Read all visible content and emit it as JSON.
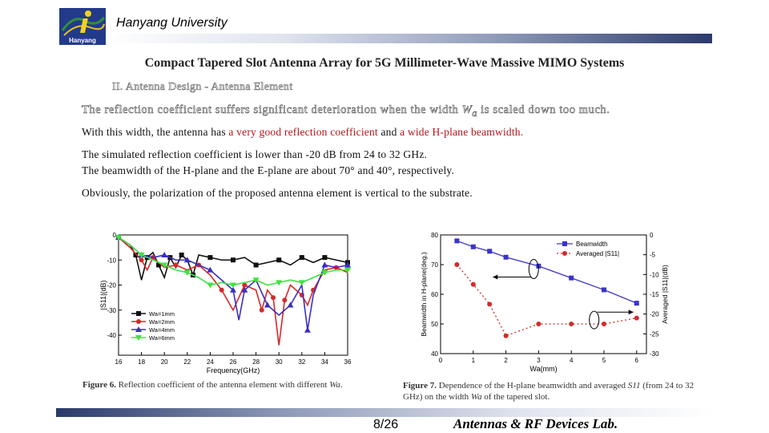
{
  "header": {
    "university": "Hanyang University",
    "logo_text": "Hanyang",
    "accent": "#2b3a6b"
  },
  "title": "Compact Tapered Slot Antenna Array for 5G Millimeter-Wave Massive MIMO Systems",
  "section": "II. Antenna Design - Antenna Element",
  "reflection_note": {
    "pre": "The reflection coefficient suffers significant deterioration when the width ",
    "var": "W",
    "sub": "a",
    "post": " is scaled down too much."
  },
  "body": {
    "line1_pre": "With this width, the antenna has ",
    "line1_red1": "a very good reflection coefficient",
    "line1_mid": " and ",
    "line1_red2": "a wide H-plane beamwidth.",
    "line2": "The simulated reflection coefficient is lower than -20 dB from 24 to 32 GHz.",
    "line3": "The beamwidth of the H-plane and the E-plane are about 70° and 40°, respectively.",
    "line4": "Obviously, the polarization of the proposed antenna element is vertical to the substrate."
  },
  "captions": {
    "fig6_bold": "Figure 6.",
    "fig6_text": " Reflection coefficient of the antenna element with different ",
    "fig6_var": "Wa",
    "fig6_end": ".",
    "fig7_bold": "Figure 7.",
    "fig7_text": " Dependence of the H-plane beamwidth and averaged ",
    "fig7_var": "S11",
    "fig7_text2": " (from 24 to 32 GHz) on the width ",
    "fig7_var2": "Wa",
    "fig7_end": " of the tapered slot."
  },
  "footer": {
    "page": "8/26",
    "lab": "Antennas & RF Devices Lab."
  },
  "chart_data": [
    {
      "type": "line",
      "xlabel": "Frequency(GHz)",
      "ylabel": "|S11|(dB)",
      "xlim": [
        16,
        36
      ],
      "ylim": [
        -48,
        0
      ],
      "xticks": [
        16,
        18,
        20,
        22,
        24,
        26,
        28,
        30,
        32,
        34,
        36
      ],
      "yticks": [
        0,
        -10,
        -20,
        -30,
        -40
      ],
      "legend": "bottom-left",
      "series": [
        {
          "name": "Wa=1mm",
          "color": "#111111",
          "marker": "square",
          "x": [
            16,
            17,
            17.5,
            18,
            18.5,
            19,
            19.5,
            20,
            20.5,
            21,
            21.5,
            22,
            22.5,
            23,
            24,
            25,
            26,
            27,
            28,
            29,
            30,
            31,
            32,
            33,
            34,
            35,
            36
          ],
          "y": [
            -1,
            -4,
            -8,
            -18,
            -9,
            -7,
            -12,
            -17,
            -9,
            -13,
            -8,
            -10,
            -16,
            -8,
            -9,
            -10,
            -10,
            -9,
            -12,
            -11,
            -10,
            -12,
            -9,
            -11,
            -9,
            -10,
            -11
          ]
        },
        {
          "name": "Wa=2mm",
          "color": "#d42a2a",
          "marker": "circle",
          "x": [
            16,
            17,
            18,
            18.5,
            19,
            20,
            21,
            22,
            23,
            24,
            25,
            26,
            27,
            28,
            28.5,
            29,
            29.5,
            30,
            30.5,
            31,
            32,
            32.5,
            33,
            34,
            35,
            36
          ],
          "y": [
            -1,
            -5,
            -10,
            -14,
            -9,
            -13,
            -12,
            -14,
            -12,
            -16,
            -22,
            -30,
            -20,
            -22,
            -30,
            -22,
            -25,
            -44,
            -26,
            -20,
            -24,
            -28,
            -22,
            -14,
            -13,
            -15
          ]
        },
        {
          "name": "Wa=4mm",
          "color": "#3a2fc2",
          "marker": "triangle-up",
          "x": [
            16,
            17,
            18,
            19,
            20,
            21,
            22,
            23,
            24,
            25,
            26,
            26.5,
            27,
            28,
            29,
            30,
            31,
            32,
            32.5,
            33,
            34,
            35,
            36
          ],
          "y": [
            -1,
            -4,
            -8,
            -9,
            -8,
            -10,
            -10,
            -12,
            -14,
            -18,
            -22,
            -34,
            -22,
            -18,
            -28,
            -32,
            -28,
            -20,
            -38,
            -24,
            -12,
            -13,
            -12
          ]
        },
        {
          "name": "Wa=6mm",
          "color": "#3fe33f",
          "marker": "triangle-down",
          "x": [
            16,
            17,
            18,
            19,
            20,
            21,
            22,
            23,
            24,
            25,
            26,
            27,
            28,
            29,
            30,
            31,
            32,
            33,
            34,
            35,
            36
          ],
          "y": [
            -1,
            -4,
            -8,
            -10,
            -12,
            -14,
            -15,
            -17,
            -20,
            -19,
            -20,
            -19,
            -18,
            -20,
            -19,
            -18,
            -19,
            -17,
            -15,
            -14,
            -14
          ]
        }
      ]
    },
    {
      "type": "line",
      "xlabel": "Wa(mm)",
      "ylabel": "Beamwidth in H-plane(deg.)",
      "ylabel_right": "Averaged |S11|(dB)",
      "xlim": [
        0,
        6.3
      ],
      "ylim": [
        40,
        80
      ],
      "ylim_right": [
        -30,
        0
      ],
      "xticks": [
        0,
        1,
        2,
        3,
        4,
        5,
        6
      ],
      "yticks": [
        40,
        50,
        60,
        70,
        80
      ],
      "yticks_right": [
        0,
        -5,
        -10,
        -15,
        -20,
        -25,
        -30
      ],
      "legend": "top-right",
      "series": [
        {
          "name": "Beamwidth",
          "axis": "left",
          "color": "#3a34c8",
          "marker": "square",
          "x": [
            0.5,
            1,
            1.5,
            2,
            3,
            4,
            5,
            6
          ],
          "y": [
            78,
            76,
            74.5,
            72.5,
            69.5,
            65.5,
            61.5,
            57
          ]
        },
        {
          "name": "Averaged |S11|",
          "axis": "right",
          "color": "#d42a2a",
          "marker": "circle",
          "dash": true,
          "x": [
            0.5,
            1,
            1.5,
            2,
            3,
            4,
            5,
            6
          ],
          "y": [
            -7.5,
            -12.5,
            -17.5,
            -25.5,
            -22.5,
            -22.5,
            -22.5,
            -21
          ]
        }
      ]
    }
  ]
}
